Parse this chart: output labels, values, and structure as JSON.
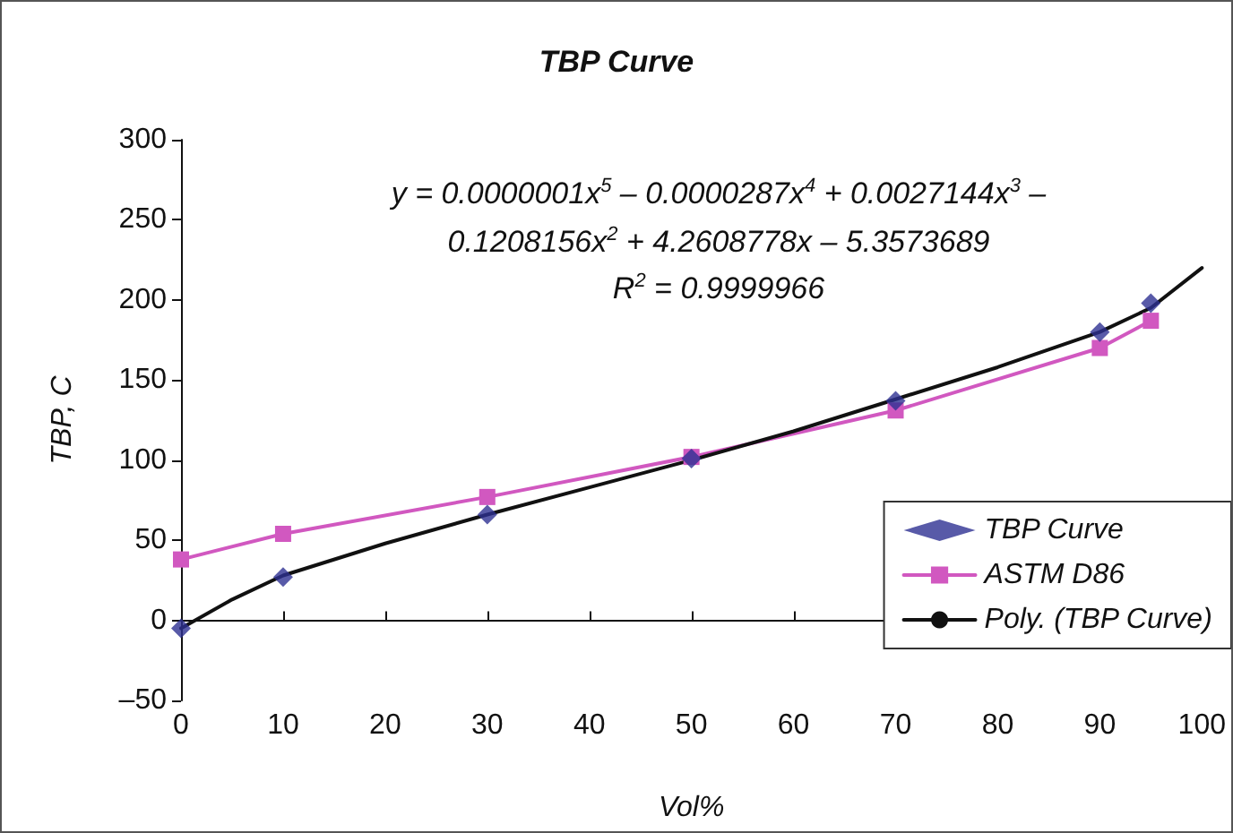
{
  "chart_data": {
    "type": "line",
    "title": "TBP Curve",
    "xlabel": "Vol%",
    "ylabel": "TBP, C",
    "annotations": [
      "y = 0.0000001x$^{5}$ – 0.0000287x$^{4}$ + 0.0027144x$^{3}$ –\n0.1208156x$^{2}$ + 4.2608778x – 5.3573689\nR$^{2}$ = 0.9999966"
    ],
    "xlim": [
      0,
      100
    ],
    "xticks": [
      0,
      10,
      20,
      30,
      40,
      50,
      60,
      70,
      80,
      90,
      100
    ],
    "ylim": [
      -50,
      300
    ],
    "yticks": [
      {
        "value": -50,
        "label": "–50"
      },
      0,
      50,
      100,
      150,
      200,
      250,
      300
    ],
    "legend": "bottom right",
    "series": [
      {
        "name": "TBP Curve",
        "type": "scatter",
        "marker": "diamond",
        "color": "#2e3192",
        "x": [
          0,
          10,
          30,
          50,
          70,
          90,
          95
        ],
        "values": [
          -5,
          27,
          66,
          101,
          137,
          180,
          198
        ]
      },
      {
        "name": "ASTM D86",
        "type": "line",
        "marker": "square",
        "color": "#d158c0",
        "x": [
          0,
          10,
          30,
          50,
          70,
          90,
          95
        ],
        "values": [
          38,
          54,
          77,
          102,
          131,
          170,
          187
        ]
      },
      {
        "name": "Poly. (TBP Curve)",
        "type": "line",
        "marker": "none",
        "color": "#111111",
        "x": [
          0,
          5,
          10,
          20,
          30,
          40,
          50,
          60,
          70,
          80,
          90,
          95,
          100
        ],
        "values": [
          -5,
          13,
          28,
          48,
          66,
          83,
          100,
          118,
          138,
          158,
          180,
          195,
          220
        ]
      }
    ]
  }
}
